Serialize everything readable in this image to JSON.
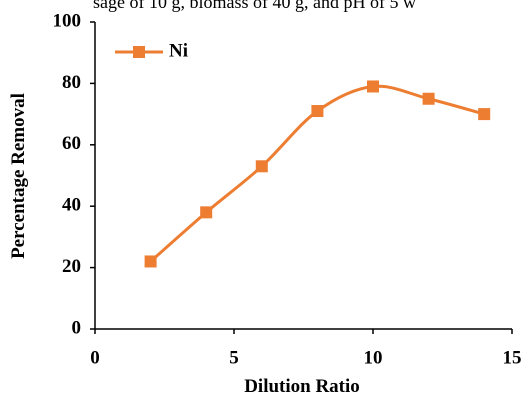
{
  "caption": "sage of 10 g, biomass of 40 g, and pH of 5 w",
  "chart_data": {
    "type": "line",
    "x_label": "Dilution Ratio",
    "y_label": "Percentage Removal",
    "x": [
      2,
      4,
      6,
      8,
      10,
      12,
      14
    ],
    "series": [
      {
        "name": "Ni",
        "color": "#ed7d31",
        "values": [
          22,
          38,
          53,
          71,
          79,
          75,
          70
        ]
      }
    ],
    "xlim": [
      0,
      15
    ],
    "xticks": [
      0,
      5,
      10,
      15
    ],
    "ylim": [
      0,
      100
    ],
    "yticks": [
      0,
      20,
      40,
      60,
      80,
      100
    ],
    "smooth": true,
    "grid": false,
    "legend": "upper left",
    "marker": "square"
  }
}
